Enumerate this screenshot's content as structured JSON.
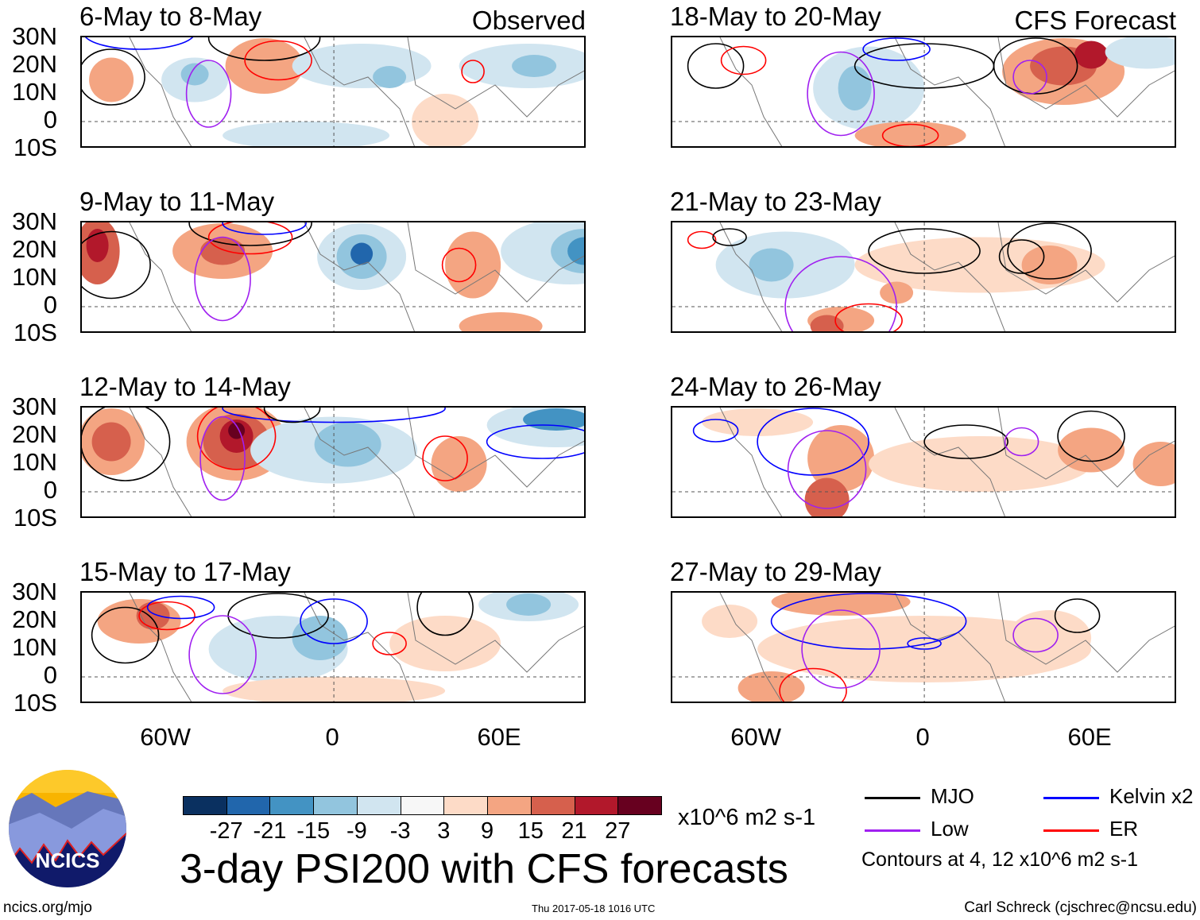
{
  "panels": [
    {
      "title": "6-May to 8-May",
      "tag": "Observed"
    },
    {
      "title": "9-May to 11-May"
    },
    {
      "title": "12-May to 14-May"
    },
    {
      "title": "15-May to 17-May"
    },
    {
      "title": "18-May to 20-May",
      "tag": "CFS Forecast"
    },
    {
      "title": "21-May to 23-May"
    },
    {
      "title": "24-May to 26-May"
    },
    {
      "title": "27-May to 29-May"
    }
  ],
  "lat_labels": [
    "30N",
    "20N",
    "10N",
    "0",
    "10S"
  ],
  "lon_labels": [
    "60W",
    "0",
    "60E"
  ],
  "colorbar": {
    "colors": [
      "#0a3060",
      "#2166ac",
      "#4393c3",
      "#92c5de",
      "#d1e5f0",
      "#f7f7f7",
      "#fddbc7",
      "#f4a582",
      "#d6604d",
      "#b2182b",
      "#67001f"
    ],
    "labels": [
      "-27",
      "-21",
      "-15",
      "-9",
      "-3",
      "3",
      "9",
      "15",
      "21",
      "27"
    ],
    "units": "x10^6 m2 s-1"
  },
  "legend": {
    "items": [
      {
        "label": "MJO",
        "color": "#000000"
      },
      {
        "label": "Kelvin x2",
        "color": "#0000ff"
      },
      {
        "label": "Low",
        "color": "#a020f0"
      },
      {
        "label": "ER",
        "color": "#ff0000"
      }
    ],
    "note": "Contours at 4, 12 x10^6 m2 s-1"
  },
  "title": "3-day PSI200 with CFS forecasts",
  "logo_text": "NCICS",
  "footer": {
    "left": "ncics.org/mjo",
    "center": "Thu 2017-05-18 1016 UTC",
    "right": "Carl Schreck (cjschrec@ncsu.edu)"
  }
}
